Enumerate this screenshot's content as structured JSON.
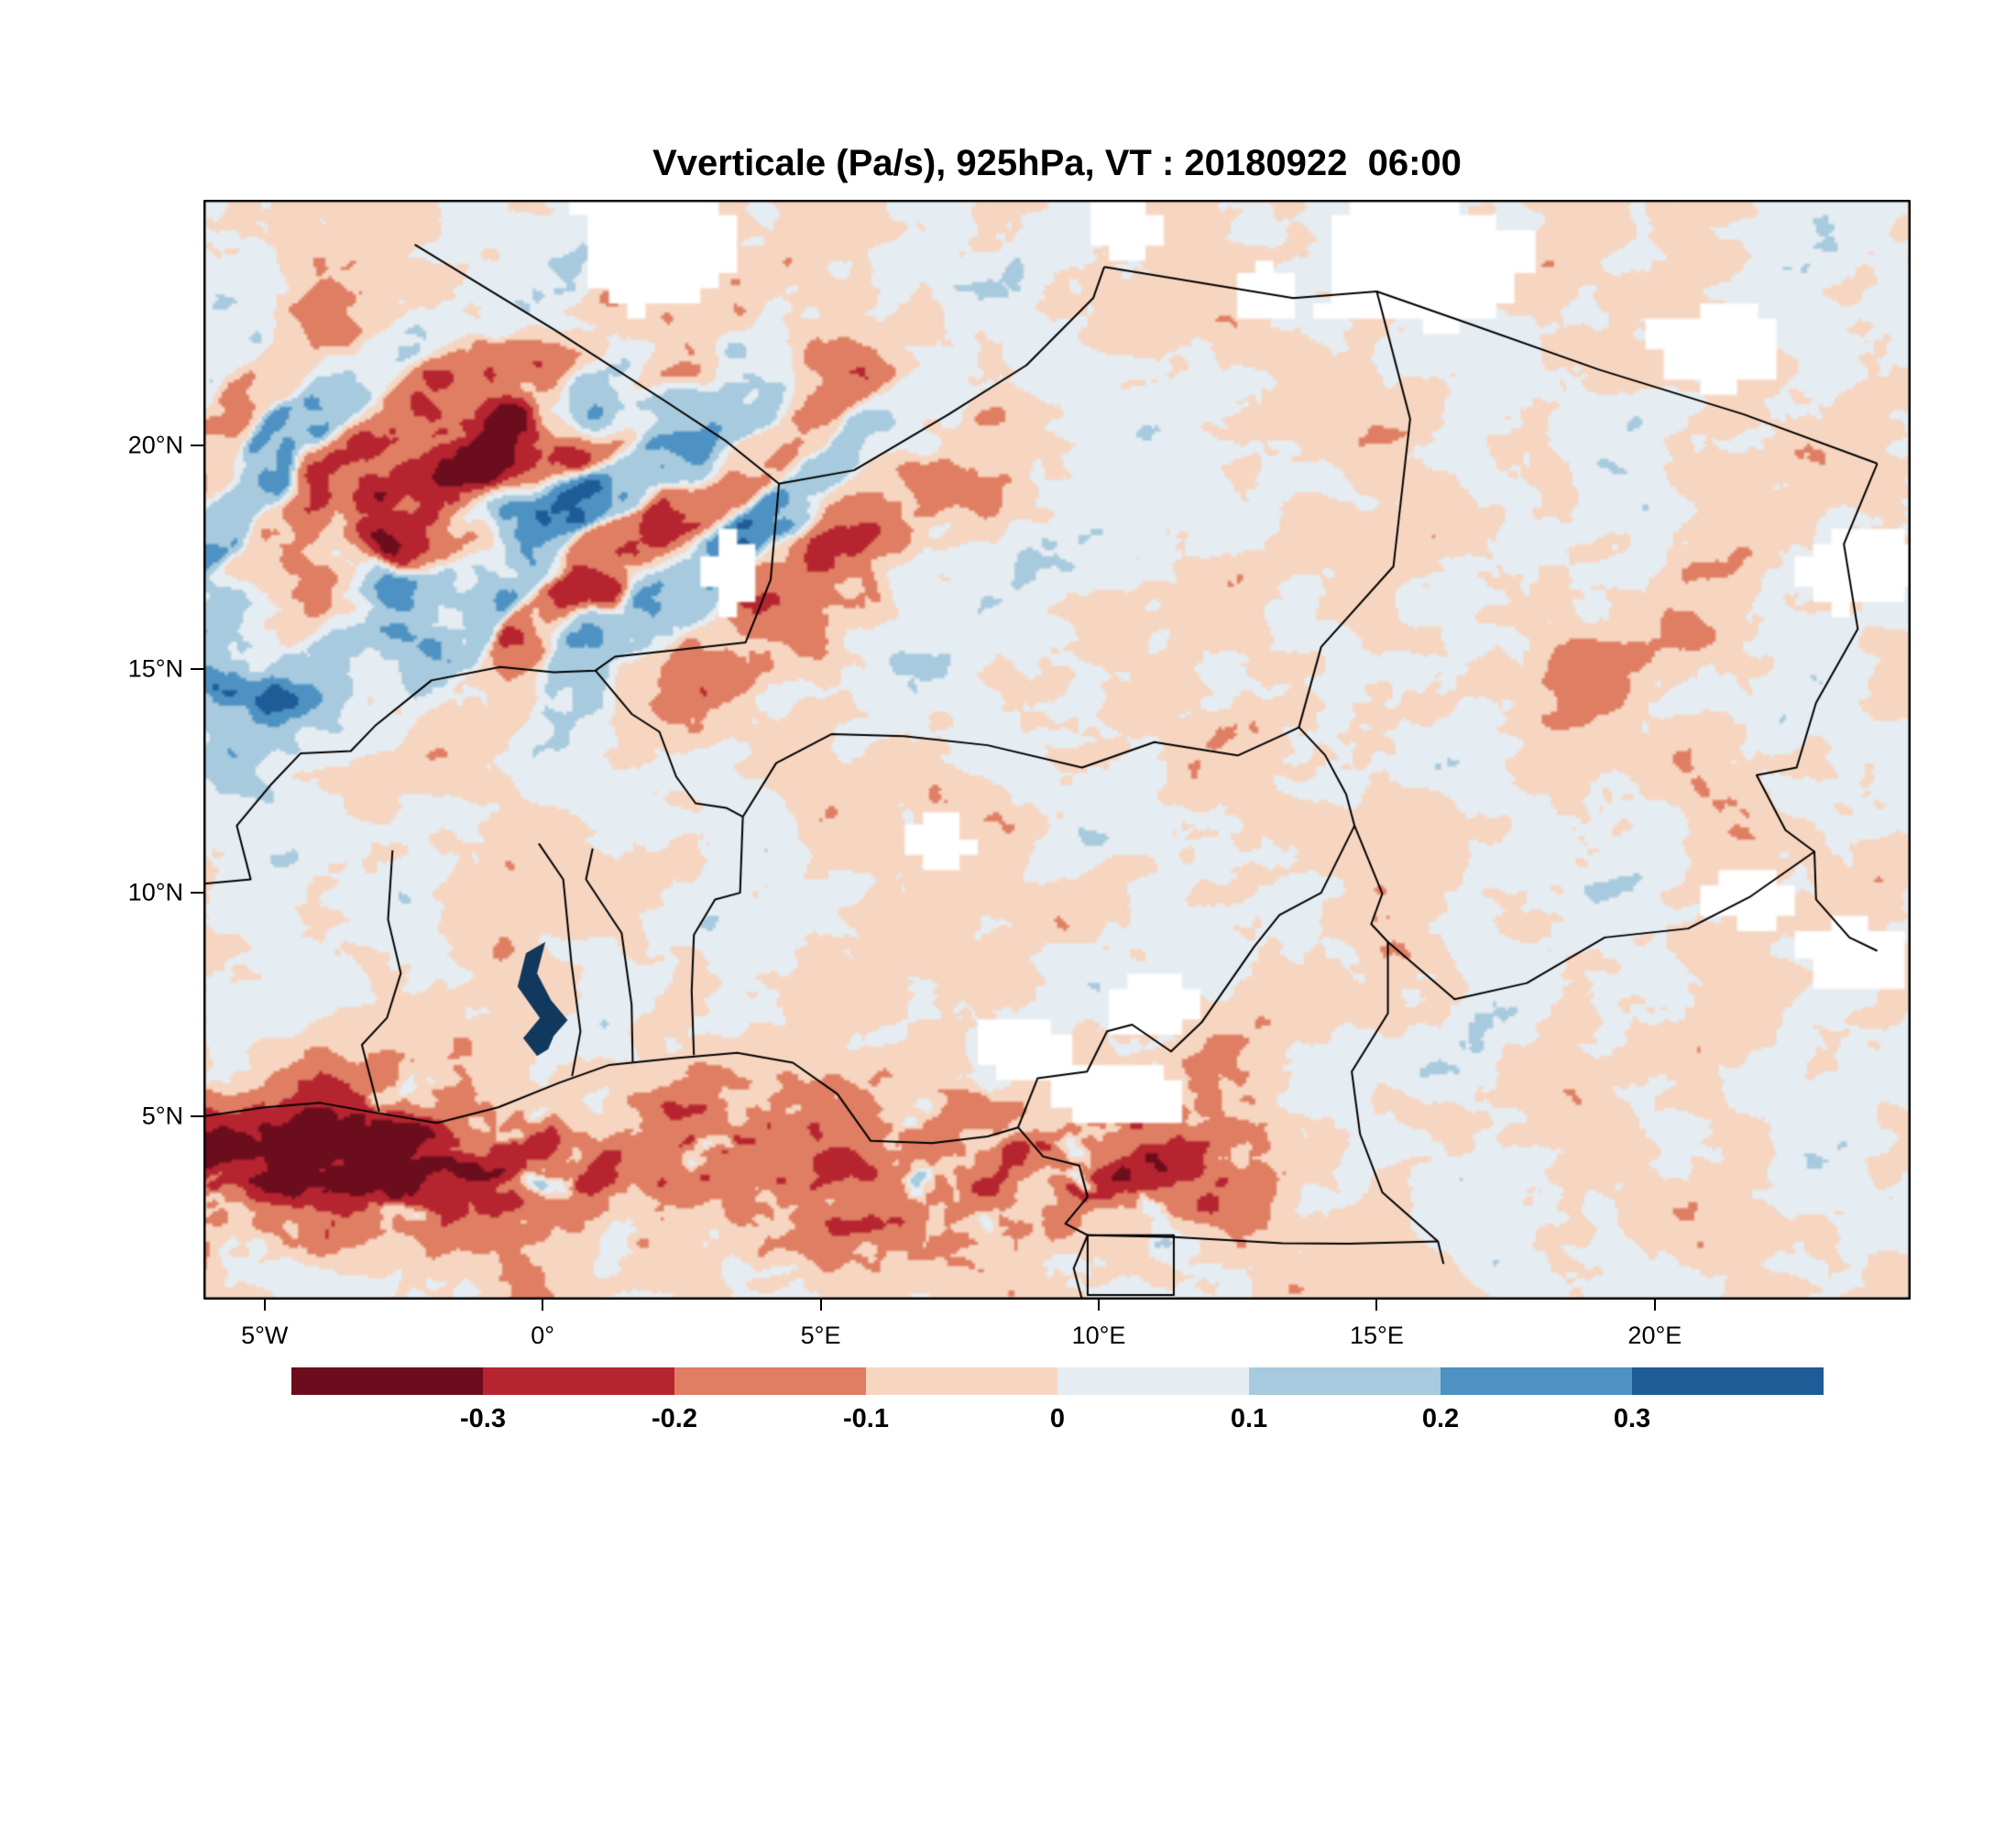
{
  "title": "Vverticale (Pa/s), 925hPa, VT : 20180922  06:00",
  "axes": {
    "y_ticks": [
      {
        "label": "20°N",
        "lat": 20
      },
      {
        "label": "15°N",
        "lat": 15
      },
      {
        "label": "10°N",
        "lat": 10
      },
      {
        "label": "5°N",
        "lat": 5
      }
    ],
    "x_ticks": [
      {
        "label": "5°W",
        "lon": -5
      },
      {
        "label": "0°",
        "lon": 0
      },
      {
        "label": "5°E",
        "lon": 5
      },
      {
        "label": "10°E",
        "lon": 10
      },
      {
        "label": "15°E",
        "lon": 15
      },
      {
        "label": "20°E",
        "lon": 20
      }
    ]
  },
  "colorbar": {
    "tick_labels": [
      "-0.3",
      "-0.2",
      "-0.1",
      "0",
      "0.1",
      "0.2",
      "0.3"
    ]
  },
  "chart_data": {
    "type": "heatmap",
    "title": "Vverticale (Pa/s), 925hPa, VT : 20180922  06:00",
    "variable": "Vverticale",
    "units": "Pa/s",
    "pressure_level": "925hPa",
    "valid_time": "20180922 06:00",
    "lon_range": [
      -6.1,
      24.6
    ],
    "lat_range": [
      0.9,
      25.5
    ],
    "contour_levels": [
      -0.3,
      -0.2,
      -0.1,
      0,
      0.1,
      0.2,
      0.3
    ],
    "fill_colors": [
      "#6b0d1c",
      "#b62430",
      "#df7e63",
      "#f7d6c1",
      "#e6edf2",
      "#a7cade",
      "#4e92c3",
      "#1e5b97"
    ],
    "missing_color": "#ffffff",
    "border_color": "#000000",
    "lake_color": "#11395e",
    "grid": false,
    "legend_position": "bottom",
    "borders": [
      [
        [
          -2.3,
          24.5
        ],
        [
          0.2,
          22.6
        ],
        [
          2.2,
          21.0
        ],
        [
          3.3,
          20.1
        ],
        [
          4.25,
          19.15
        ]
      ],
      [
        [
          4.25,
          19.15
        ],
        [
          5.6,
          19.45
        ],
        [
          7.3,
          20.7
        ],
        [
          8.7,
          21.8
        ],
        [
          9.9,
          23.3
        ],
        [
          10.1,
          24.0
        ]
      ],
      [
        [
          10.1,
          24.0
        ],
        [
          13.5,
          23.3
        ],
        [
          15.0,
          23.45
        ],
        [
          16.5,
          22.8
        ],
        [
          19.0,
          21.7
        ],
        [
          21.6,
          20.7
        ],
        [
          24.0,
          19.6
        ]
      ],
      [
        [
          15.0,
          23.45
        ],
        [
          15.6,
          20.6
        ],
        [
          15.3,
          17.3
        ],
        [
          14.0,
          15.5
        ],
        [
          13.6,
          13.7
        ]
      ],
      [
        [
          4.25,
          19.15
        ],
        [
          4.1,
          17.0
        ],
        [
          3.65,
          15.6
        ],
        [
          1.3,
          15.28
        ],
        [
          0.95,
          14.97
        ],
        [
          0.2,
          14.93
        ],
        [
          -0.76,
          15.05
        ],
        [
          -2.0,
          14.75
        ],
        [
          -3.0,
          13.75
        ],
        [
          -3.45,
          13.17
        ],
        [
          -4.35,
          13.12
        ],
        [
          -4.9,
          12.4
        ],
        [
          -5.5,
          11.5
        ],
        [
          -5.25,
          10.3
        ],
        [
          -6.1,
          10.2
        ]
      ],
      [
        [
          0.95,
          14.97
        ],
        [
          1.6,
          14.0
        ],
        [
          2.1,
          13.6
        ],
        [
          2.4,
          12.6
        ],
        [
          2.75,
          12.0
        ],
        [
          3.3,
          11.9
        ],
        [
          3.6,
          11.7
        ]
      ],
      [
        [
          3.6,
          11.7
        ],
        [
          4.2,
          12.9
        ],
        [
          5.2,
          13.55
        ],
        [
          6.5,
          13.5
        ],
        [
          8.0,
          13.3
        ],
        [
          9.7,
          12.8
        ],
        [
          11.0,
          13.37
        ],
        [
          12.5,
          13.07
        ],
        [
          13.35,
          13.55
        ],
        [
          13.6,
          13.7
        ],
        [
          14.07,
          13.08
        ],
        [
          14.45,
          12.2
        ],
        [
          14.6,
          11.5
        ]
      ],
      [
        [
          3.6,
          11.7
        ],
        [
          3.55,
          10.0
        ],
        [
          3.1,
          9.85
        ],
        [
          2.72,
          9.06
        ],
        [
          2.68,
          7.8
        ],
        [
          2.72,
          6.37
        ]
      ],
      [
        [
          1.62,
          6.22
        ],
        [
          1.6,
          7.5
        ],
        [
          1.42,
          9.1
        ],
        [
          0.78,
          10.3
        ],
        [
          0.9,
          10.99
        ]
      ],
      [
        [
          0.53,
          5.9
        ],
        [
          0.68,
          6.9
        ],
        [
          0.52,
          8.4
        ],
        [
          0.37,
          10.3
        ],
        [
          -0.07,
          11.1
        ]
      ],
      [
        [
          -2.94,
          5.1
        ],
        [
          -3.25,
          6.6
        ],
        [
          -2.8,
          7.2
        ],
        [
          -2.55,
          8.2
        ],
        [
          -2.78,
          9.4
        ],
        [
          -2.7,
          10.95
        ]
      ],
      [
        [
          14.6,
          11.5
        ],
        [
          14.0,
          10.0
        ],
        [
          13.25,
          9.5
        ],
        [
          12.8,
          8.8
        ],
        [
          11.85,
          7.1
        ],
        [
          11.3,
          6.45
        ],
        [
          10.6,
          7.05
        ],
        [
          10.15,
          6.9
        ],
        [
          9.79,
          6.0
        ],
        [
          8.9,
          5.85
        ],
        [
          8.55,
          4.75
        ]
      ],
      [
        [
          14.6,
          11.5
        ],
        [
          15.1,
          9.98
        ],
        [
          14.9,
          9.3
        ],
        [
          15.2,
          8.9
        ],
        [
          16.4,
          7.62
        ],
        [
          17.7,
          7.98
        ],
        [
          19.1,
          9.0
        ],
        [
          20.6,
          9.2
        ],
        [
          21.7,
          9.9
        ],
        [
          22.87,
          10.92
        ]
      ],
      [
        [
          15.2,
          8.9
        ],
        [
          15.2,
          7.3
        ],
        [
          14.55,
          6.0
        ],
        [
          14.7,
          4.6
        ],
        [
          15.1,
          3.3
        ],
        [
          16.1,
          2.2
        ],
        [
          16.2,
          1.7
        ]
      ],
      [
        [
          9.8,
          2.34
        ],
        [
          11.35,
          2.3
        ],
        [
          13.3,
          2.16
        ],
        [
          14.5,
          2.15
        ],
        [
          16.1,
          2.2
        ]
      ],
      [
        [
          9.8,
          2.34
        ],
        [
          11.35,
          2.34
        ],
        [
          11.35,
          1.0
        ],
        [
          9.8,
          1.0
        ],
        [
          9.8,
          2.34
        ]
      ],
      [
        [
          24.0,
          19.6
        ],
        [
          23.4,
          17.8
        ],
        [
          23.65,
          15.9
        ],
        [
          22.9,
          14.25
        ],
        [
          22.55,
          12.8
        ],
        [
          21.83,
          12.63
        ],
        [
          22.35,
          11.4
        ],
        [
          22.87,
          10.92
        ],
        [
          22.9,
          9.85
        ],
        [
          23.5,
          9.0
        ],
        [
          24.0,
          8.7
        ]
      ],
      [
        [
          -6.1,
          5.0
        ],
        [
          -5.0,
          5.2
        ],
        [
          -4.0,
          5.3
        ],
        [
          -3.1,
          5.1
        ],
        [
          -1.9,
          4.85
        ],
        [
          -0.8,
          5.2
        ],
        [
          0.3,
          5.75
        ],
        [
          1.2,
          6.15
        ],
        [
          2.4,
          6.3
        ],
        [
          3.5,
          6.42
        ],
        [
          4.5,
          6.2
        ],
        [
          5.3,
          5.5
        ],
        [
          5.9,
          4.45
        ],
        [
          7.0,
          4.4
        ],
        [
          8.0,
          4.55
        ],
        [
          8.55,
          4.75
        ],
        [
          9.0,
          4.1
        ],
        [
          9.65,
          3.9
        ],
        [
          9.8,
          3.2
        ],
        [
          9.4,
          2.6
        ],
        [
          9.8,
          2.34
        ],
        [
          9.55,
          1.6
        ],
        [
          9.7,
          0.9
        ]
      ]
    ],
    "lake_volta": [
      [
        -0.1,
        6.35
      ],
      [
        -0.35,
        6.75
      ],
      [
        -0.05,
        7.2
      ],
      [
        -0.45,
        7.9
      ],
      [
        -0.3,
        8.65
      ],
      [
        0.05,
        8.9
      ],
      [
        -0.1,
        8.2
      ],
      [
        0.15,
        7.6
      ],
      [
        0.45,
        7.15
      ],
      [
        0.2,
        6.8
      ],
      [
        0.1,
        6.5
      ]
    ]
  }
}
